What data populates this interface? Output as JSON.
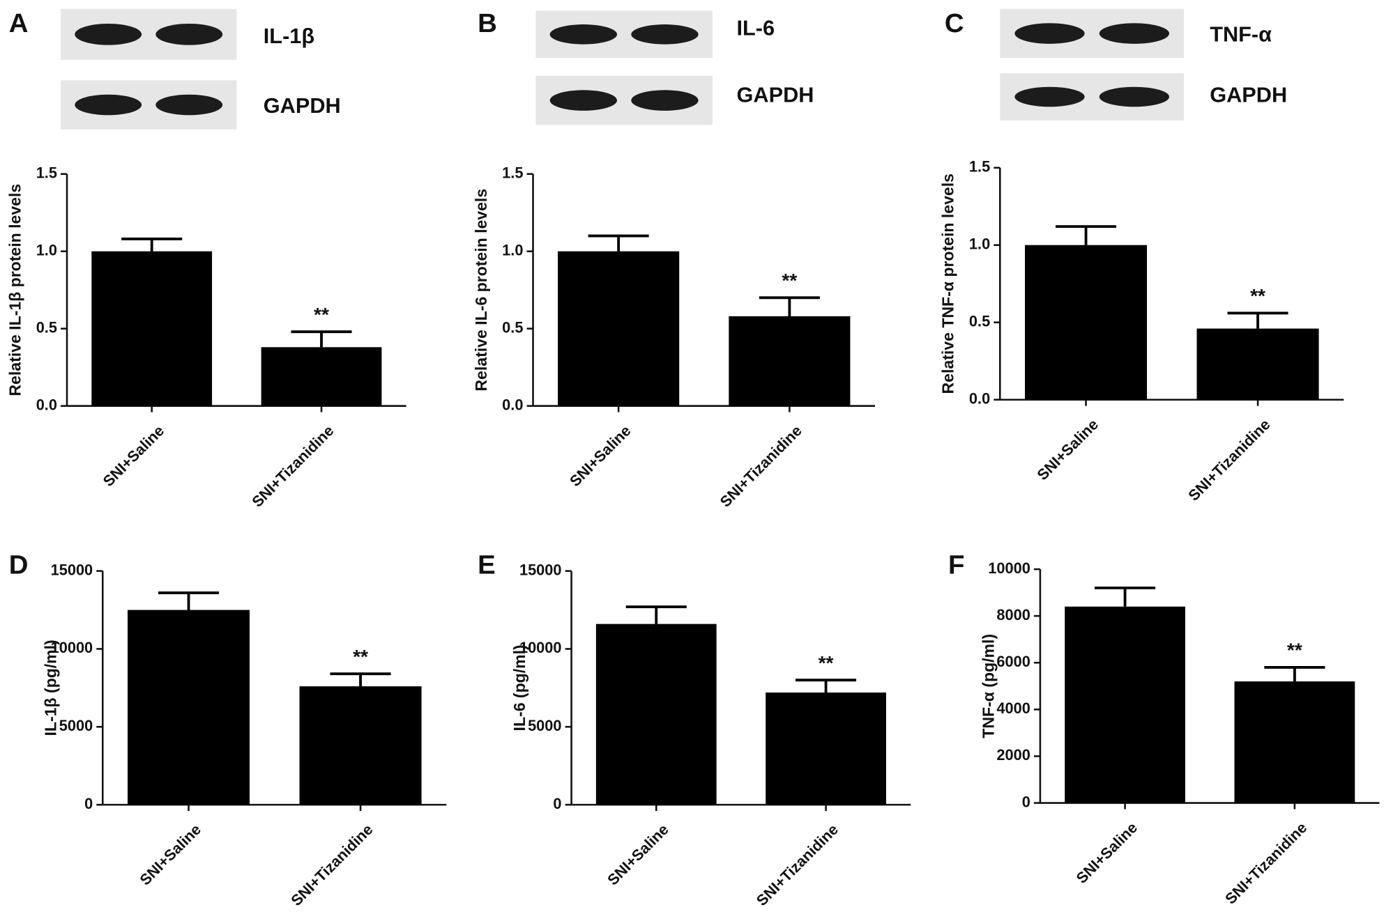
{
  "chart_data": [
    {
      "type": "bar",
      "panel": "A",
      "blot_labels": [
        "IL-1β",
        "GAPDH"
      ],
      "ylabel": "Relative IL-1β protein levels",
      "categories": [
        "SNI+Saline",
        "SNI+Tizanidine"
      ],
      "values": [
        1.0,
        0.38
      ],
      "errors": [
        0.08,
        0.1
      ],
      "color": "#000000",
      "annotations": [
        {
          "text": "**",
          "category": "SNI+Tizanidine"
        }
      ],
      "ylim": [
        0,
        1.5
      ],
      "yticks": [
        {
          "value": 0,
          "label": "0.0"
        },
        0.5,
        {
          "value": 1,
          "label": "1.0"
        },
        1.5
      ]
    },
    {
      "type": "bar",
      "panel": "B",
      "blot_labels": [
        "IL-6",
        "GAPDH"
      ],
      "ylabel": "Relative IL-6 protein levels",
      "categories": [
        "SNI+Saline",
        "SNI+Tizanidine"
      ],
      "values": [
        1.0,
        0.58
      ],
      "errors": [
        0.1,
        0.12
      ],
      "color": "#000000",
      "annotations": [
        {
          "text": "**",
          "category": "SNI+Tizanidine"
        }
      ],
      "ylim": [
        0,
        1.5
      ],
      "yticks": [
        {
          "value": 0,
          "label": "0.0"
        },
        0.5,
        {
          "value": 1,
          "label": "1.0"
        },
        1.5
      ]
    },
    {
      "type": "bar",
      "panel": "C",
      "blot_labels": [
        "TNF-α",
        "GAPDH"
      ],
      "ylabel": "Relative TNF-α protein levels",
      "categories": [
        "SNI+Saline",
        "SNI+Tizanidine"
      ],
      "values": [
        1.0,
        0.46
      ],
      "errors": [
        0.12,
        0.1
      ],
      "color": "#000000",
      "annotations": [
        {
          "text": "**",
          "category": "SNI+Tizanidine"
        }
      ],
      "ylim": [
        0,
        1.5
      ],
      "yticks": [
        {
          "value": 0,
          "label": "0.0"
        },
        0.5,
        {
          "value": 1,
          "label": "1.0"
        },
        1.5
      ]
    },
    {
      "type": "bar",
      "panel": "D",
      "ylabel": "IL-1β (pg/ml)",
      "categories": [
        "SNI+Saline",
        "SNI+Tizanidine"
      ],
      "values": [
        12500,
        7600
      ],
      "errors": [
        1100,
        800
      ],
      "color": "#000000",
      "annotations": [
        {
          "text": "**",
          "category": "SNI+Tizanidine"
        }
      ],
      "ylim": [
        0,
        15000
      ],
      "yticks": [
        0,
        5000,
        10000,
        15000
      ]
    },
    {
      "type": "bar",
      "panel": "E",
      "ylabel": "IL-6 (pg/ml)",
      "categories": [
        "SNI+Saline",
        "SNI+Tizanidine"
      ],
      "values": [
        11600,
        7200
      ],
      "errors": [
        1100,
        800
      ],
      "color": "#000000",
      "annotations": [
        {
          "text": "**",
          "category": "SNI+Tizanidine"
        }
      ],
      "ylim": [
        0,
        15000
      ],
      "yticks": [
        0,
        5000,
        10000,
        15000
      ]
    },
    {
      "type": "bar",
      "panel": "F",
      "ylabel": "TNF-α (pg/ml)",
      "categories": [
        "SNI+Saline",
        "SNI+Tizanidine"
      ],
      "values": [
        8400,
        5200
      ],
      "errors": [
        800,
        600
      ],
      "color": "#000000",
      "annotations": [
        {
          "text": "**",
          "category": "SNI+Tizanidine"
        }
      ],
      "ylim": [
        0,
        10000
      ],
      "yticks": [
        0,
        2000,
        4000,
        6000,
        8000,
        10000
      ]
    }
  ]
}
